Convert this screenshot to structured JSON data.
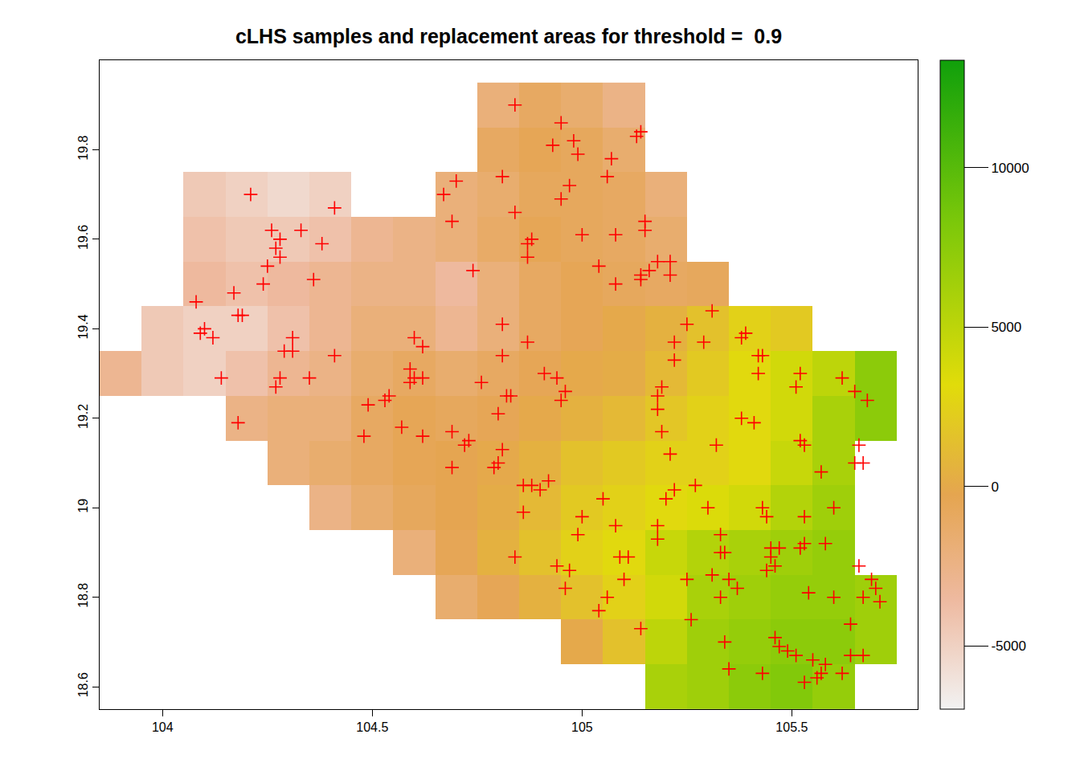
{
  "chart_data": {
    "type": "heatmap",
    "title": "cLHS samples and replacement areas for threshold =  0.9",
    "xlim": [
      103.85,
      105.8
    ],
    "ylim": [
      18.55,
      20.0
    ],
    "xticks": [
      104,
      104.5,
      105,
      105.5
    ],
    "yticks": [
      18.6,
      18.8,
      19,
      19.2,
      19.4,
      19.6,
      19.8
    ],
    "zlim": [
      -6990,
      13375
    ],
    "zticks": [
      -5000,
      0,
      5000,
      10000
    ],
    "x": [
      103.9,
      104.0,
      104.1,
      104.2,
      104.3,
      104.4,
      104.5,
      104.6,
      104.7,
      104.8,
      104.9,
      105.0,
      105.1,
      105.2,
      105.3,
      105.4,
      105.5,
      105.6,
      105.7,
      105.8
    ],
    "y": [
      18.6,
      18.7,
      18.8,
      18.9,
      19.0,
      19.1,
      19.2,
      19.3,
      19.4,
      19.5,
      19.6,
      19.7,
      19.8,
      19.9
    ],
    "z": [
      [
        null,
        null,
        null,
        null,
        null,
        null,
        null,
        null,
        null,
        null,
        null,
        null,
        null,
        6000,
        6500,
        7500,
        8000,
        7000,
        null,
        null
      ],
      [
        null,
        null,
        null,
        null,
        null,
        null,
        null,
        null,
        null,
        null,
        null,
        0,
        1500,
        5000,
        6500,
        7000,
        7500,
        7500,
        6500,
        null
      ],
      [
        null,
        null,
        null,
        null,
        null,
        null,
        null,
        null,
        -1500,
        -500,
        500,
        1500,
        2500,
        4000,
        6000,
        6500,
        7000,
        7000,
        6500,
        null
      ],
      [
        null,
        null,
        null,
        null,
        null,
        null,
        null,
        -2000,
        -500,
        500,
        1500,
        2500,
        3000,
        4500,
        5500,
        6000,
        6500,
        7000,
        null,
        null
      ],
      [
        null,
        null,
        null,
        null,
        null,
        -2500,
        -1500,
        -800,
        -300,
        200,
        1000,
        2000,
        2500,
        3000,
        3500,
        4000,
        5500,
        6500,
        null,
        null
      ],
      [
        null,
        null,
        null,
        null,
        -2000,
        -1500,
        -1000,
        -500,
        -300,
        0,
        500,
        1500,
        2000,
        2500,
        2500,
        3000,
        4500,
        6000,
        null,
        null
      ],
      [
        null,
        null,
        null,
        -2500,
        -2000,
        -2000,
        -1000,
        -500,
        -800,
        -500,
        0,
        500,
        1000,
        1800,
        2500,
        3000,
        4000,
        6000,
        7500,
        null
      ],
      [
        -3000,
        -4500,
        -5000,
        -4000,
        -3000,
        -2500,
        -1500,
        -1000,
        -1500,
        -1000,
        -500,
        0,
        200,
        1000,
        2000,
        3000,
        4000,
        5000,
        7500,
        null
      ],
      [
        null,
        -4500,
        -5000,
        -5000,
        -4000,
        -3000,
        -2000,
        -2000,
        -3000,
        -2000,
        -1000,
        -500,
        0,
        500,
        1500,
        2500,
        2000,
        null,
        null,
        null
      ],
      [
        null,
        null,
        -3500,
        -4000,
        -3500,
        -3000,
        -2500,
        -2500,
        -3500,
        -2000,
        -1000,
        -500,
        -800,
        -1000,
        -800,
        null,
        null,
        null,
        null,
        null
      ],
      [
        null,
        null,
        -4000,
        -4500,
        -4500,
        -4000,
        -3000,
        -2500,
        -2000,
        -1200,
        -500,
        -800,
        -1000,
        -1500,
        null,
        null,
        null,
        null,
        null,
        null
      ],
      [
        null,
        null,
        -4500,
        -5000,
        -5500,
        -5000,
        null,
        null,
        -2000,
        -1500,
        -800,
        -800,
        -1000,
        -2000,
        null,
        null,
        null,
        null,
        null,
        null
      ],
      [
        null,
        null,
        null,
        null,
        null,
        null,
        null,
        null,
        null,
        -1000,
        -500,
        -800,
        -1500,
        null,
        null,
        null,
        null,
        null,
        null,
        null
      ],
      [
        null,
        null,
        null,
        null,
        null,
        null,
        null,
        null,
        null,
        -2000,
        -1000,
        -1500,
        -2500,
        null,
        null,
        null,
        null,
        null,
        null,
        null
      ]
    ],
    "series": [
      {
        "type": "scatter",
        "marker": "cross",
        "color": "#ff0000",
        "x": [
          104.84,
          104.95,
          104.93,
          104.98,
          104.99,
          105.14,
          105.13,
          105.07,
          104.81,
          104.97,
          105.06,
          104.95,
          104.84,
          104.7,
          104.67,
          104.69,
          105.15,
          105.15,
          105.08,
          105.0,
          104.88,
          104.87,
          104.87,
          104.74,
          105.04,
          105.18,
          105.21,
          105.14,
          105.16,
          105.14,
          105.21,
          105.08,
          104.21,
          104.41,
          104.26,
          104.33,
          104.27,
          104.28,
          104.28,
          104.25,
          104.38,
          104.24,
          104.36,
          104.08,
          104.17,
          104.18,
          104.19,
          104.1,
          104.09,
          104.12,
          104.31,
          104.29,
          104.31,
          104.41,
          104.14,
          104.28,
          104.27,
          104.35,
          104.18,
          104.6,
          104.62,
          104.59,
          104.6,
          104.62,
          104.59,
          104.54,
          104.53,
          104.49,
          104.48,
          104.57,
          104.62,
          104.69,
          104.72,
          104.73,
          104.69,
          104.76,
          104.81,
          104.81,
          104.82,
          104.83,
          104.8,
          104.81,
          104.8,
          104.79,
          104.87,
          104.91,
          104.94,
          104.95,
          104.96,
          104.86,
          104.88,
          104.9,
          104.92,
          104.86,
          104.84,
          104.94,
          104.96,
          104.97,
          104.99,
          105.0,
          105.05,
          105.08,
          105.11,
          105.09,
          105.1,
          105.06,
          105.04,
          105.14,
          105.18,
          105.18,
          105.2,
          105.22,
          105.21,
          105.19,
          105.18,
          105.18,
          105.19,
          105.22,
          105.22,
          105.25,
          105.29,
          105.31,
          105.38,
          105.39,
          105.42,
          105.43,
          105.42,
          105.38,
          105.41,
          105.32,
          105.27,
          105.3,
          105.33,
          105.25,
          105.31,
          105.34,
          105.33,
          105.35,
          105.33,
          105.37,
          105.44,
          105.46,
          105.45,
          105.47,
          105.43,
          105.44,
          105.45,
          105.26,
          105.34,
          105.35,
          105.43,
          105.46,
          105.47,
          105.51,
          105.53,
          105.55,
          105.56,
          105.57,
          105.58,
          105.62,
          105.64,
          105.67,
          105.64,
          105.54,
          105.49,
          105.52,
          105.53,
          105.58,
          105.53,
          105.6,
          105.57,
          105.52,
          105.53,
          105.51,
          105.52,
          105.62,
          105.65,
          105.68,
          105.66,
          105.67,
          105.65,
          105.69,
          105.7,
          105.71,
          105.66,
          105.67,
          105.6
        ],
        "y": [
          19.9,
          19.86,
          19.81,
          19.82,
          19.79,
          19.84,
          19.83,
          19.78,
          19.74,
          19.72,
          19.74,
          19.69,
          19.66,
          19.73,
          19.7,
          19.64,
          19.64,
          19.62,
          19.61,
          19.61,
          19.6,
          19.59,
          19.56,
          19.53,
          19.54,
          19.55,
          19.55,
          19.52,
          19.53,
          19.51,
          19.52,
          19.5,
          19.7,
          19.67,
          19.62,
          19.62,
          19.58,
          19.6,
          19.56,
          19.54,
          19.59,
          19.5,
          19.51,
          19.46,
          19.48,
          19.43,
          19.43,
          19.4,
          19.39,
          19.38,
          19.38,
          19.35,
          19.35,
          19.34,
          19.29,
          19.29,
          19.27,
          19.29,
          19.19,
          19.38,
          19.36,
          19.31,
          19.29,
          19.29,
          19.28,
          19.25,
          19.24,
          19.23,
          19.16,
          19.18,
          19.16,
          19.17,
          19.14,
          19.15,
          19.09,
          19.28,
          19.41,
          19.34,
          19.25,
          19.25,
          19.21,
          19.13,
          19.1,
          19.09,
          19.37,
          19.3,
          19.29,
          19.24,
          19.26,
          19.05,
          19.05,
          19.04,
          19.06,
          18.99,
          18.89,
          18.87,
          18.82,
          18.86,
          18.94,
          18.98,
          19.02,
          18.96,
          18.89,
          18.89,
          18.84,
          18.8,
          18.77,
          18.73,
          18.93,
          18.96,
          19.02,
          19.04,
          19.12,
          19.17,
          19.22,
          19.25,
          19.27,
          19.33,
          19.37,
          19.41,
          19.37,
          19.44,
          19.38,
          19.39,
          19.34,
          19.34,
          19.3,
          19.2,
          19.19,
          19.14,
          19.05,
          19.0,
          18.94,
          18.84,
          18.85,
          18.9,
          18.9,
          18.84,
          18.8,
          18.82,
          18.86,
          18.87,
          18.91,
          18.91,
          19.0,
          18.98,
          18.89,
          18.75,
          18.7,
          18.64,
          18.63,
          18.71,
          18.69,
          18.67,
          18.61,
          18.66,
          18.62,
          18.63,
          18.65,
          18.63,
          18.67,
          18.67,
          18.74,
          18.81,
          18.68,
          18.91,
          18.92,
          18.92,
          18.98,
          19.0,
          19.08,
          19.15,
          19.14,
          19.27,
          19.3,
          19.29,
          19.26,
          19.24,
          19.14,
          19.1,
          19.1,
          18.84,
          18.82,
          18.79,
          18.87,
          18.8,
          18.8
        ]
      }
    ]
  }
}
